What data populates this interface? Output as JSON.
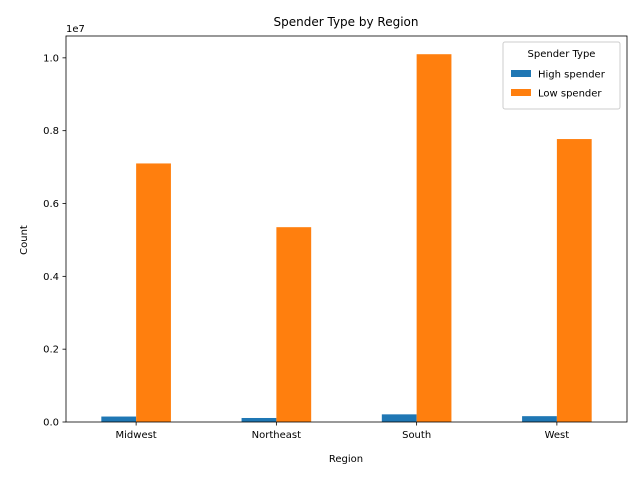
{
  "chart_data": {
    "type": "bar",
    "title": "Spender Type by Region",
    "xlabel": "Region",
    "ylabel": "Count",
    "offset_text": "1e7",
    "categories": [
      "Midwest",
      "Northeast",
      "South",
      "West"
    ],
    "series": [
      {
        "name": "High spender",
        "color": "#1f77b4",
        "values": [
          150000,
          110000,
          210000,
          160000
        ]
      },
      {
        "name": "Low spender",
        "color": "#ff7f0e",
        "values": [
          7100000,
          5350000,
          10100000,
          7770000
        ]
      }
    ],
    "yticks": [
      0,
      2000000,
      4000000,
      6000000,
      8000000,
      10000000
    ],
    "ytick_labels": [
      "0.0",
      "0.2",
      "0.4",
      "0.6",
      "0.8",
      "1.0"
    ],
    "ylim": [
      0,
      10600000
    ],
    "grid": false,
    "legend": {
      "title": "Spender Type",
      "position": "top-right"
    }
  }
}
